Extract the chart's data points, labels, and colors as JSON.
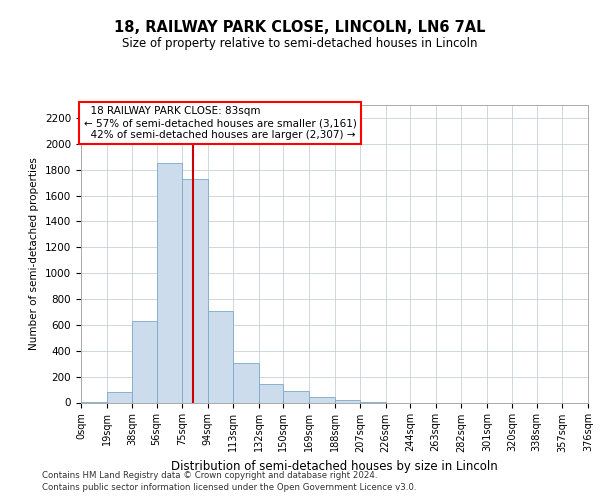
{
  "title": "18, RAILWAY PARK CLOSE, LINCOLN, LN6 7AL",
  "subtitle": "Size of property relative to semi-detached houses in Lincoln",
  "xlabel": "Distribution of semi-detached houses by size in Lincoln",
  "ylabel": "Number of semi-detached properties",
  "property_size": 83,
  "property_label": "18 RAILWAY PARK CLOSE: 83sqm",
  "smaller_pct": 57,
  "smaller_count": 3161,
  "larger_pct": 42,
  "larger_count": 2307,
  "bar_color": "#ccdcec",
  "bar_edge_color": "#7aaac8",
  "highlight_color": "#cc0000",
  "bin_edges": [
    0,
    19,
    38,
    56,
    75,
    94,
    113,
    132,
    150,
    169,
    188,
    207,
    226,
    244,
    263,
    282,
    301,
    320,
    338,
    357,
    376
  ],
  "bin_labels": [
    "0sqm",
    "19sqm",
    "38sqm",
    "56sqm",
    "75sqm",
    "94sqm",
    "113sqm",
    "132sqm",
    "150sqm",
    "169sqm",
    "188sqm",
    "207sqm",
    "226sqm",
    "244sqm",
    "263sqm",
    "282sqm",
    "301sqm",
    "320sqm",
    "338sqm",
    "357sqm",
    "376sqm"
  ],
  "counts": [
    3,
    80,
    630,
    1850,
    1730,
    710,
    305,
    140,
    90,
    45,
    18,
    5,
    0,
    0,
    0,
    0,
    0,
    0,
    0,
    0
  ],
  "ylim": [
    0,
    2300
  ],
  "yticks": [
    0,
    200,
    400,
    600,
    800,
    1000,
    1200,
    1400,
    1600,
    1800,
    2000,
    2200
  ],
  "footer_line1": "Contains HM Land Registry data © Crown copyright and database right 2024.",
  "footer_line2": "Contains public sector information licensed under the Open Government Licence v3.0.",
  "background_color": "#ffffff",
  "grid_color": "#c8d0da"
}
